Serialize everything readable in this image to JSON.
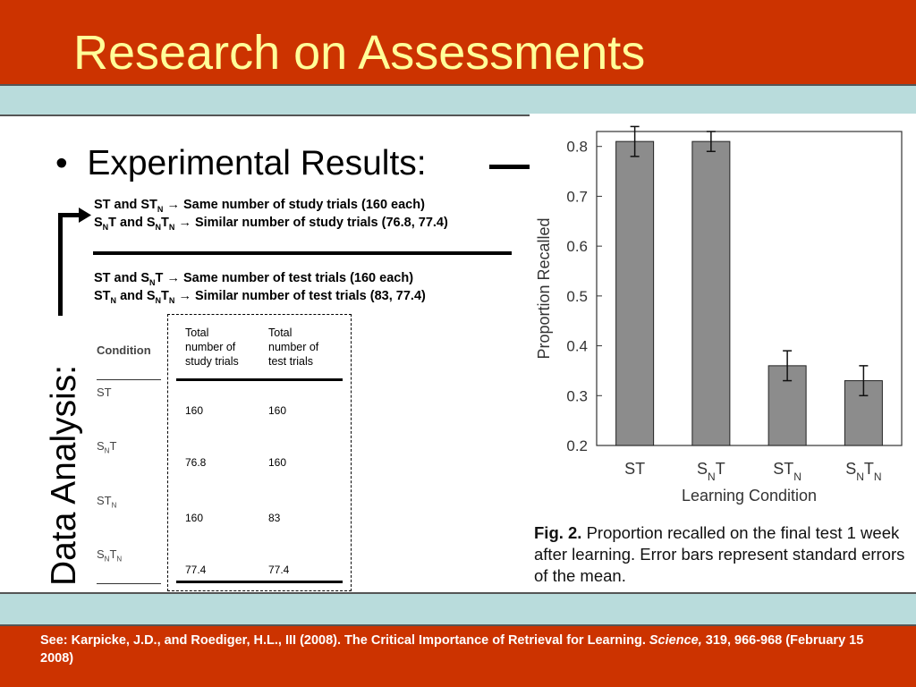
{
  "slide": {
    "title": "Research on Assessments",
    "bullet": "Experimental Results:",
    "bullet_marker": "•",
    "side_label": "Data Analysis:"
  },
  "notes": {
    "line1": {
      "a": "ST and ST",
      "a_sub": "N",
      "arrow": "→",
      "text": "Same number of study trials (160 each)"
    },
    "line2": {
      "a": "S",
      "a_sub": "N",
      "b": "T and S",
      "b_sub": "N",
      "c": "T",
      "c_sub": "N",
      "arrow": "→",
      "text": "Similar number of study trials (76.8, 77.4)"
    },
    "line3": {
      "a": "ST and S",
      "a_sub": "N",
      "b": "T",
      "arrow": "→",
      "text": "Same number of test trials (160 each)"
    },
    "line4": {
      "a": "ST",
      "a_sub": "N",
      "b": "and S",
      "b_sub": "N",
      "c": "T",
      "c_sub": "N",
      "arrow": "→",
      "text": "Similar number of test trials (83, 77.4)"
    }
  },
  "conditions": {
    "header": "Condition",
    "items": [
      {
        "main": "ST",
        "sub": "",
        "tail": "",
        "tail_sub": ""
      },
      {
        "main": "S",
        "sub": "N",
        "tail": "T",
        "tail_sub": ""
      },
      {
        "main": "ST",
        "sub": "N",
        "tail": "",
        "tail_sub": ""
      },
      {
        "main": "S",
        "sub": "N",
        "tail": "T",
        "tail_sub": "N"
      }
    ]
  },
  "trials_table": {
    "col1_header": [
      "Total",
      "number of",
      "study trials"
    ],
    "col2_header": [
      "Total",
      "number of",
      "test trials"
    ],
    "rows": [
      {
        "study": "160",
        "test": "160"
      },
      {
        "study": "76.8",
        "test": "160"
      },
      {
        "study": "160",
        "test": "83"
      },
      {
        "study": "77.4",
        "test": "77.4"
      }
    ]
  },
  "chart_data": {
    "type": "bar",
    "categories": [
      {
        "main": "S",
        "rest": "T",
        "sub": "",
        "rest2": ""
      },
      {
        "main": "S",
        "sub": "N",
        "rest": "T",
        "rest2": ""
      },
      {
        "main": "ST",
        "sub": "N",
        "rest": "",
        "rest2": ""
      },
      {
        "main": "S",
        "sub": "N",
        "rest": "T",
        "rest2": "N"
      }
    ],
    "category_labels": [
      "ST",
      "SNT",
      "STN",
      "SNTN"
    ],
    "values": [
      0.81,
      0.81,
      0.36,
      0.33
    ],
    "errors": [
      0.03,
      0.02,
      0.03,
      0.03
    ],
    "ylim": [
      0.2,
      0.83
    ],
    "yticks": [
      "0.2",
      "0.3",
      "0.4",
      "0.5",
      "0.6",
      "0.7",
      "0.8"
    ],
    "ylabel": "Proportion Recalled",
    "xlabel": "Learning Condition",
    "bar_color": "#8c8c8c",
    "grid": false
  },
  "caption": {
    "fig": "Fig. 2.",
    "text": "Proportion recalled on the final test 1 week after learning. Error bars represent standard errors of the mean."
  },
  "reference": {
    "before": "See: Karpicke, J.D., and Roediger, H.L., III (2008). The Critical Importance of Retrieval for Learning.",
    "journal": "Science,",
    "after": "319, 966-968 (February 15 2008)"
  },
  "colors": {
    "header": "#cc3300",
    "title": "#ffff99",
    "band": "#b9dcdc"
  }
}
